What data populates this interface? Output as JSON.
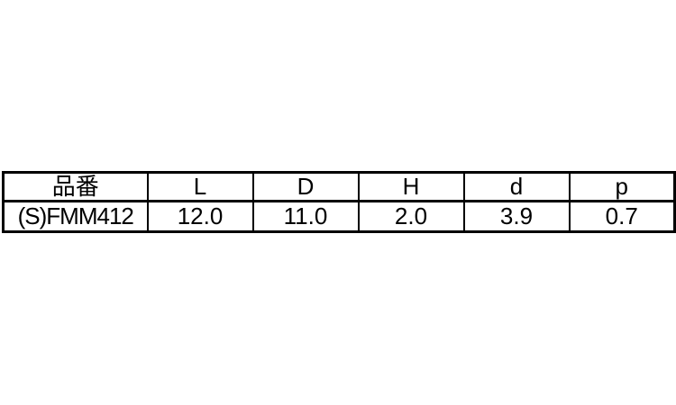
{
  "colors": {
    "background": "#ffffff",
    "border": "#000000",
    "text": "#000000"
  },
  "spec_table": {
    "columns": [
      {
        "key": "part_number",
        "label": "品番"
      },
      {
        "key": "L",
        "label": "L"
      },
      {
        "key": "D",
        "label": "D"
      },
      {
        "key": "H",
        "label": "H"
      },
      {
        "key": "d",
        "label": "d"
      },
      {
        "key": "p",
        "label": "p"
      }
    ],
    "rows": [
      {
        "part_number": "(S)FMM412",
        "L": "12.0",
        "D": "11.0",
        "H": "2.0",
        "d": "3.9",
        "p": "0.7"
      }
    ]
  }
}
